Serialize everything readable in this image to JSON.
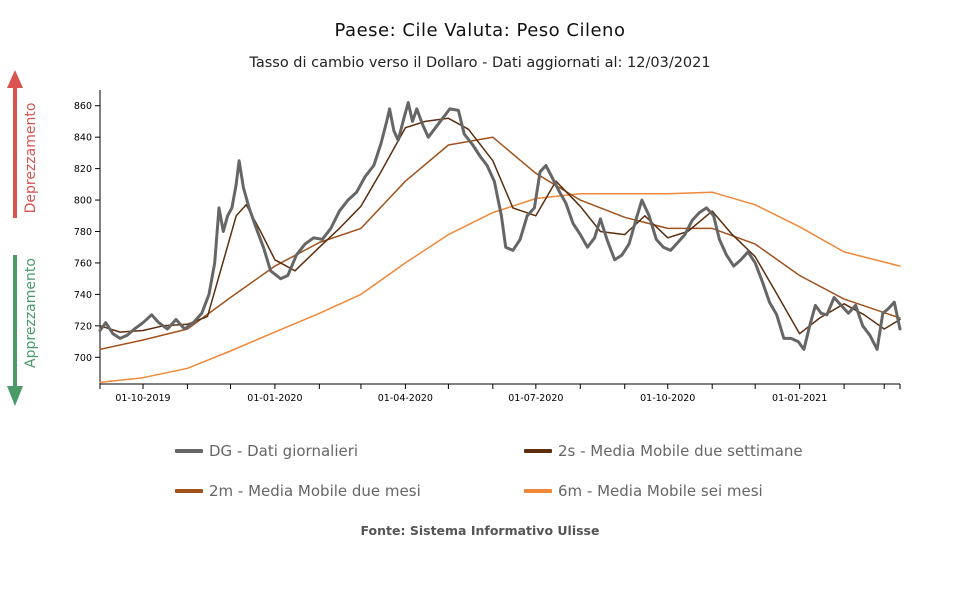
{
  "title": "Paese: Cile Valuta: Peso Cileno",
  "subtitle": "Tasso di cambio verso il Dollaro - Dati aggiornati al: 12/03/2021",
  "source": "Fonte: Sistema Informativo Ulisse",
  "side_labels": {
    "up": "Deprezzamento",
    "down": "Apprezzamento",
    "up_color": "#d9534f",
    "down_color": "#4a9a6a"
  },
  "chart_data": {
    "type": "line",
    "title": "Paese: Cile Valuta: Peso Cileno",
    "subtitle": "Tasso di cambio verso il Dollaro - Dati aggiornati al: 12/03/2021",
    "x_tick_labels": [
      "01-10-2019",
      "01-01-2020",
      "01-04-2020",
      "01-07-2020",
      "01-10-2020",
      "01-01-2021"
    ],
    "x_range": [
      "2019-09-01",
      "2021-03-12"
    ],
    "ylim": [
      683,
      870
    ],
    "yticks": [
      700,
      720,
      740,
      760,
      780,
      800,
      820,
      840,
      860
    ],
    "grid": false,
    "legend_position": "bottom",
    "series": [
      {
        "name": "DG - Dati giornalieri",
        "color": "#666666",
        "width": 3,
        "points": [
          [
            "2019-09-01",
            717
          ],
          [
            "2019-09-05",
            722
          ],
          [
            "2019-09-10",
            715
          ],
          [
            "2019-09-15",
            712
          ],
          [
            "2019-09-20",
            714
          ],
          [
            "2019-09-25",
            718
          ],
          [
            "2019-10-01",
            722
          ],
          [
            "2019-10-07",
            727
          ],
          [
            "2019-10-12",
            722
          ],
          [
            "2019-10-18",
            718
          ],
          [
            "2019-10-24",
            724
          ],
          [
            "2019-10-30",
            718
          ],
          [
            "2019-11-05",
            722
          ],
          [
            "2019-11-11",
            728
          ],
          [
            "2019-11-16",
            740
          ],
          [
            "2019-11-20",
            760
          ],
          [
            "2019-11-23",
            795
          ],
          [
            "2019-11-26",
            780
          ],
          [
            "2019-11-29",
            790
          ],
          [
            "2019-12-02",
            795
          ],
          [
            "2019-12-05",
            810
          ],
          [
            "2019-12-07",
            825
          ],
          [
            "2019-12-10",
            808
          ],
          [
            "2019-12-14",
            795
          ],
          [
            "2019-12-19",
            782
          ],
          [
            "2019-12-24",
            770
          ],
          [
            "2019-12-29",
            755
          ],
          [
            "2020-01-05",
            750
          ],
          [
            "2020-01-10",
            752
          ],
          [
            "2020-01-16",
            765
          ],
          [
            "2020-01-22",
            772
          ],
          [
            "2020-01-28",
            776
          ],
          [
            "2020-02-03",
            775
          ],
          [
            "2020-02-09",
            782
          ],
          [
            "2020-02-15",
            793
          ],
          [
            "2020-02-21",
            800
          ],
          [
            "2020-02-27",
            805
          ],
          [
            "2020-03-04",
            815
          ],
          [
            "2020-03-10",
            822
          ],
          [
            "2020-03-15",
            836
          ],
          [
            "2020-03-19",
            850
          ],
          [
            "2020-03-21",
            858
          ],
          [
            "2020-03-24",
            844
          ],
          [
            "2020-03-27",
            838
          ],
          [
            "2020-03-31",
            852
          ],
          [
            "2020-04-03",
            862
          ],
          [
            "2020-04-06",
            850
          ],
          [
            "2020-04-09",
            858
          ],
          [
            "2020-04-13",
            848
          ],
          [
            "2020-04-17",
            840
          ],
          [
            "2020-04-22",
            846
          ],
          [
            "2020-04-27",
            852
          ],
          [
            "2020-05-02",
            858
          ],
          [
            "2020-05-08",
            857
          ],
          [
            "2020-05-12",
            842
          ],
          [
            "2020-05-18",
            835
          ],
          [
            "2020-05-23",
            828
          ],
          [
            "2020-05-28",
            822
          ],
          [
            "2020-06-02",
            812
          ],
          [
            "2020-06-07",
            790
          ],
          [
            "2020-06-10",
            770
          ],
          [
            "2020-06-15",
            768
          ],
          [
            "2020-06-20",
            775
          ],
          [
            "2020-06-25",
            790
          ],
          [
            "2020-06-30",
            795
          ],
          [
            "2020-07-04",
            818
          ],
          [
            "2020-07-08",
            822
          ],
          [
            "2020-07-12",
            815
          ],
          [
            "2020-07-17",
            806
          ],
          [
            "2020-07-22",
            798
          ],
          [
            "2020-07-27",
            785
          ],
          [
            "2020-08-01",
            778
          ],
          [
            "2020-08-06",
            770
          ],
          [
            "2020-08-11",
            776
          ],
          [
            "2020-08-15",
            788
          ],
          [
            "2020-08-20",
            774
          ],
          [
            "2020-08-25",
            762
          ],
          [
            "2020-08-30",
            765
          ],
          [
            "2020-09-04",
            772
          ],
          [
            "2020-09-09",
            788
          ],
          [
            "2020-09-13",
            800
          ],
          [
            "2020-09-18",
            790
          ],
          [
            "2020-09-23",
            775
          ],
          [
            "2020-09-28",
            770
          ],
          [
            "2020-10-03",
            768
          ],
          [
            "2020-10-08",
            773
          ],
          [
            "2020-10-13",
            778
          ],
          [
            "2020-10-18",
            787
          ],
          [
            "2020-10-23",
            792
          ],
          [
            "2020-10-28",
            795
          ],
          [
            "2020-11-02",
            790
          ],
          [
            "2020-11-06",
            775
          ],
          [
            "2020-11-11",
            765
          ],
          [
            "2020-11-16",
            758
          ],
          [
            "2020-11-21",
            762
          ],
          [
            "2020-11-26",
            767
          ],
          [
            "2020-12-01",
            760
          ],
          [
            "2020-12-06",
            748
          ],
          [
            "2020-12-11",
            735
          ],
          [
            "2020-12-16",
            727
          ],
          [
            "2020-12-21",
            712
          ],
          [
            "2020-12-26",
            712
          ],
          [
            "2020-12-31",
            710
          ],
          [
            "2021-01-04",
            705
          ],
          [
            "2021-01-08",
            720
          ],
          [
            "2021-01-12",
            733
          ],
          [
            "2021-01-16",
            728
          ],
          [
            "2021-01-20",
            727
          ],
          [
            "2021-01-25",
            738
          ],
          [
            "2021-01-30",
            733
          ],
          [
            "2021-02-04",
            728
          ],
          [
            "2021-02-09",
            733
          ],
          [
            "2021-02-14",
            720
          ],
          [
            "2021-02-19",
            714
          ],
          [
            "2021-02-24",
            705
          ],
          [
            "2021-02-28",
            728
          ],
          [
            "2021-03-04",
            731
          ],
          [
            "2021-03-08",
            735
          ],
          [
            "2021-03-12",
            718
          ]
        ]
      },
      {
        "name": "2s - Media Mobile due settimane",
        "color": "#5c2e0e",
        "width": 1.5,
        "points": [
          [
            "2019-09-01",
            720
          ],
          [
            "2019-09-15",
            716
          ],
          [
            "2019-10-01",
            717
          ],
          [
            "2019-10-15",
            720
          ],
          [
            "2019-11-01",
            721
          ],
          [
            "2019-11-15",
            726
          ],
          [
            "2019-11-25",
            758
          ],
          [
            "2019-12-05",
            790
          ],
          [
            "2019-12-12",
            797
          ],
          [
            "2019-12-22",
            780
          ],
          [
            "2020-01-01",
            762
          ],
          [
            "2020-01-15",
            755
          ],
          [
            "2020-02-01",
            770
          ],
          [
            "2020-02-15",
            782
          ],
          [
            "2020-03-01",
            796
          ],
          [
            "2020-03-15",
            818
          ],
          [
            "2020-04-01",
            846
          ],
          [
            "2020-04-15",
            850
          ],
          [
            "2020-05-01",
            852
          ],
          [
            "2020-05-15",
            845
          ],
          [
            "2020-06-01",
            825
          ],
          [
            "2020-06-15",
            795
          ],
          [
            "2020-07-01",
            790
          ],
          [
            "2020-07-15",
            812
          ],
          [
            "2020-08-01",
            796
          ],
          [
            "2020-08-15",
            780
          ],
          [
            "2020-09-01",
            778
          ],
          [
            "2020-09-15",
            790
          ],
          [
            "2020-10-01",
            776
          ],
          [
            "2020-10-15",
            780
          ],
          [
            "2020-11-01",
            793
          ],
          [
            "2020-11-15",
            778
          ],
          [
            "2020-12-01",
            764
          ],
          [
            "2020-12-15",
            742
          ],
          [
            "2021-01-01",
            715
          ],
          [
            "2021-01-15",
            725
          ],
          [
            "2021-02-01",
            734
          ],
          [
            "2021-02-15",
            727
          ],
          [
            "2021-03-01",
            718
          ],
          [
            "2021-03-12",
            724
          ]
        ]
      },
      {
        "name": "2m - Media Mobile due mesi",
        "color": "#a0521c",
        "width": 1.5,
        "points": [
          [
            "2019-09-01",
            705
          ],
          [
            "2019-10-01",
            711
          ],
          [
            "2019-11-01",
            718
          ],
          [
            "2019-12-01",
            738
          ],
          [
            "2020-01-01",
            758
          ],
          [
            "2020-02-01",
            773
          ],
          [
            "2020-03-01",
            782
          ],
          [
            "2020-04-01",
            812
          ],
          [
            "2020-05-01",
            835
          ],
          [
            "2020-06-01",
            840
          ],
          [
            "2020-07-01",
            817
          ],
          [
            "2020-08-01",
            800
          ],
          [
            "2020-09-01",
            789
          ],
          [
            "2020-10-01",
            782
          ],
          [
            "2020-11-01",
            782
          ],
          [
            "2020-12-01",
            772
          ],
          [
            "2021-01-01",
            752
          ],
          [
            "2021-02-01",
            737
          ],
          [
            "2021-03-12",
            725
          ]
        ]
      },
      {
        "name": "6m - Media Mobile sei mesi",
        "color": "#f0883a",
        "width": 1.5,
        "points": [
          [
            "2019-09-01",
            684
          ],
          [
            "2019-10-01",
            687
          ],
          [
            "2019-11-01",
            693
          ],
          [
            "2019-12-01",
            704
          ],
          [
            "2020-01-01",
            716
          ],
          [
            "2020-02-01",
            728
          ],
          [
            "2020-03-01",
            740
          ],
          [
            "2020-04-01",
            760
          ],
          [
            "2020-05-01",
            778
          ],
          [
            "2020-06-01",
            792
          ],
          [
            "2020-07-01",
            801
          ],
          [
            "2020-08-01",
            804
          ],
          [
            "2020-09-01",
            804
          ],
          [
            "2020-10-01",
            804
          ],
          [
            "2020-11-01",
            805
          ],
          [
            "2020-12-01",
            797
          ],
          [
            "2021-01-01",
            783
          ],
          [
            "2021-02-01",
            767
          ],
          [
            "2021-03-12",
            758
          ]
        ]
      }
    ]
  }
}
